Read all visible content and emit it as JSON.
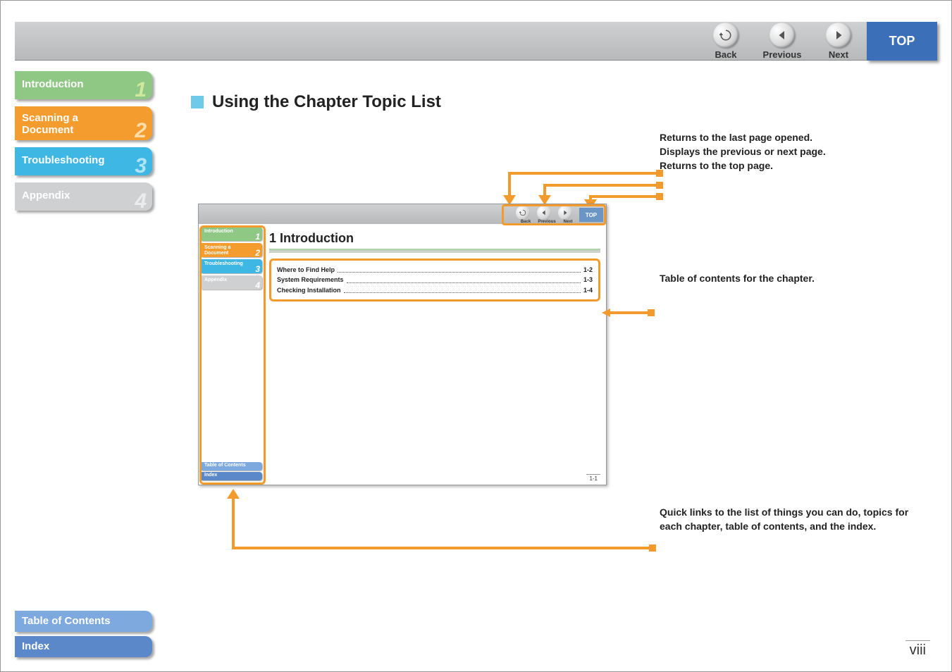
{
  "topnav": {
    "back": {
      "label": "Back"
    },
    "prev": {
      "label": "Previous"
    },
    "next": {
      "label": "Next"
    },
    "top": {
      "label": "TOP"
    }
  },
  "sidebar": [
    {
      "label": "Introduction",
      "num": "1",
      "color": "c-green",
      "slim": true
    },
    {
      "label": "Scanning a\nDocument",
      "num": "2",
      "color": "c-orange",
      "slim": false
    },
    {
      "label": "Troubleshooting",
      "num": "3",
      "color": "c-blue",
      "slim": true
    },
    {
      "label": "Appendix",
      "num": "4",
      "color": "c-grey",
      "slim": true
    }
  ],
  "bottomlinks": {
    "toc": {
      "label": "Table of Contents"
    },
    "index": {
      "label": "Index"
    }
  },
  "heading": "Using the Chapter Topic List",
  "annotations": {
    "navline1": "Returns to the last page opened.",
    "navline2": "Displays the previous or next page.",
    "navline3": "Returns to the top page.",
    "tocline": "Table of contents for the chapter.",
    "quick": "Quick links to the list of things you can do, topics for each chapter, table of contents, and the index."
  },
  "preview": {
    "topnav": {
      "back": "Back",
      "prev": "Previous",
      "next": "Next",
      "top": "TOP"
    },
    "sidebar": [
      {
        "label": "Introduction",
        "num": "1",
        "color": "c-green"
      },
      {
        "label": "Scanning a\nDocument",
        "num": "2",
        "color": "c-orange"
      },
      {
        "label": "Troubleshooting",
        "num": "3",
        "color": "c-blue"
      },
      {
        "label": "Appendix",
        "num": "4",
        "color": "c-grey"
      }
    ],
    "bottom": {
      "toc": "Table of Contents",
      "index": "Index"
    },
    "title": "1 Introduction",
    "toc": [
      {
        "t": "Where to Find Help",
        "p": "1-2"
      },
      {
        "t": "System Requirements",
        "p": "1-3"
      },
      {
        "t": "Checking Installation",
        "p": "1-4"
      }
    ],
    "pgnum": "1-1"
  },
  "pagenum": "viii",
  "colors": {
    "orange": "#f39a2d",
    "green": "#8fc785",
    "blue": "#3fb7e4",
    "grey": "#cfd0d1",
    "navblue": "#3b6fb7"
  }
}
